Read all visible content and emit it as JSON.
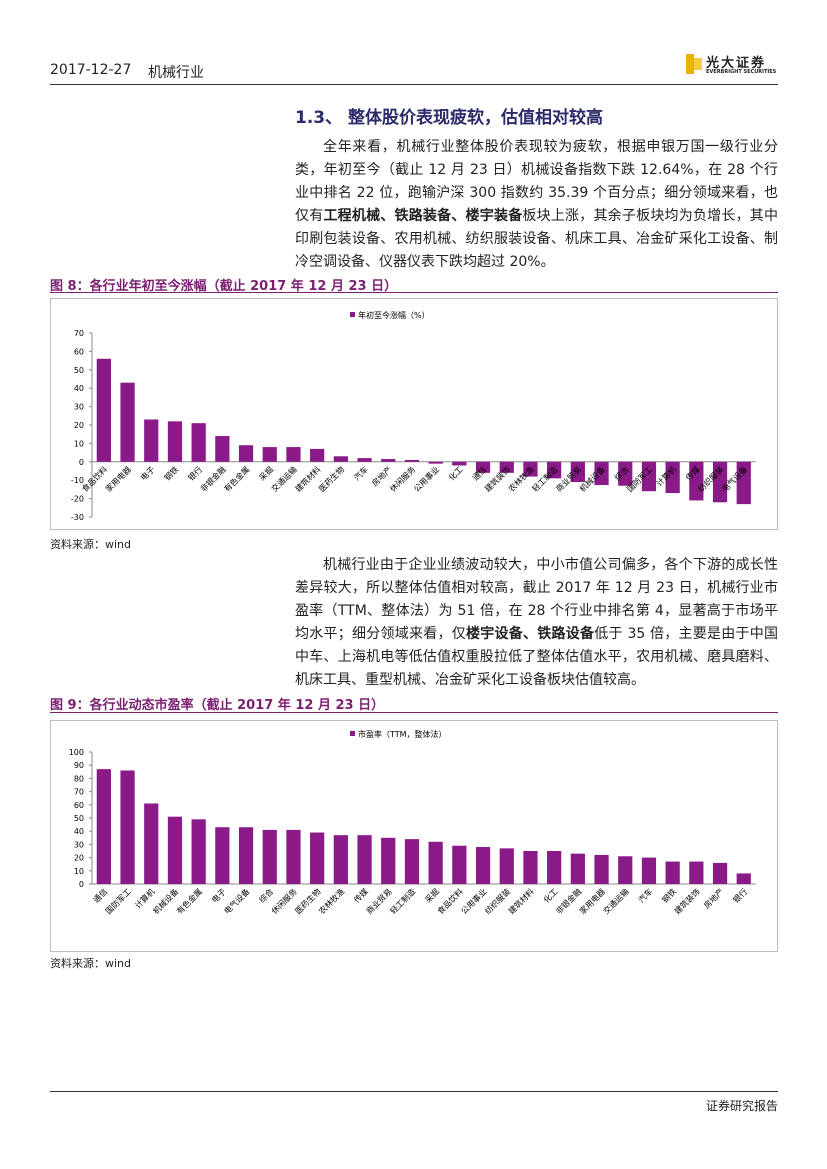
{
  "header": {
    "date": "2017-12-27",
    "industry": "机械行业",
    "logo": "光大证券",
    "logo_english": "EVERBRIGHT SECURITIES"
  },
  "section_title": "1.3、 整体股价表现疲软，估值相对较高",
  "paragraphs": [
    [
      {
        "text": "全年来看，机械行业整体股价表现较为疲软，根据申银万国一级行业分类，年初至今（截止 12 月 23 日）机械设备指数下跌 12.64%，在 28 个行业中排名 22 位，跑输沪深 300 指数约 35.39 个百分点；细分领域来看，也仅有",
        "bold": false
      },
      {
        "text": "工程机械、铁路装备、楼宇装备",
        "bold": true
      },
      {
        "text": "板块上涨，其余子板块均为负增长，其中印刷包装设备、农用机械、纺织服装设备、机床工具、冶金矿采化工设备、制冷空调设备、仪器仪表下跌均超过 20%。",
        "bold": false
      }
    ],
    [
      {
        "text": "机械行业由于企业业绩波动较大，中小市值公司偏多，各个下游的成长性差异较大，所以整体估值相对较高，截止 2017 年 12 月 23 日，机械行业市盈率（TTM、整体法）为 51 倍，在 28 个行业中排名第 4，显著高于市场平均水平；细分领域来看，仅",
        "bold": false
      },
      {
        "text": "楼宇设备、铁路设备",
        "bold": true
      },
      {
        "text": "低于 35 倍，主要是由于中国中车、上海机电等低估值权重股拉低了整体估值水平，农用机械、磨具磨料、机床工具、重型机械、冶金矿采化工设备板块估值较高。",
        "bold": false
      }
    ]
  ],
  "footer": "证券研究报告",
  "chart_data": [
    {
      "type": "bar",
      "title": "图 8：各行业年初至今涨幅（截止 2017 年 12 月 23 日）",
      "source": "资料来源：wind",
      "categories": [
        "食品饮料",
        "家用电器",
        "电子",
        "钢铁",
        "银行",
        "非银金融",
        "有色金属",
        "采掘",
        "交通运输",
        "建筑材料",
        "医药生物",
        "汽车",
        "房地产",
        "休闲服务",
        "公用事业",
        "化工",
        "通信",
        "建筑装饰",
        "农林牧渔",
        "轻工制造",
        "商业贸易",
        "机械设备",
        "综合",
        "国防军工",
        "计算机",
        "传媒",
        "纺织服装",
        "电气设备"
      ],
      "series": [
        {
          "name": "年初至今涨幅（%）",
          "color": "#8b1a89",
          "values": [
            56,
            43,
            23,
            22,
            21,
            14,
            9,
            8,
            8,
            7,
            3,
            2,
            1.5,
            1,
            -1,
            -2,
            -6,
            -6,
            -8,
            -9,
            -11,
            -12.64,
            -13,
            -16,
            -17,
            -21,
            -22,
            -23
          ]
        }
      ],
      "ylim": [
        -30,
        70
      ],
      "yticks": [
        -30,
        -20,
        -10,
        0,
        10,
        20,
        30,
        40,
        50,
        60,
        70
      ],
      "legend": "top"
    },
    {
      "type": "bar",
      "title": "图 9：各行业动态市盈率（截止 2017 年 12 月 23 日）",
      "source": "资料来源：wind",
      "categories": [
        "通信",
        "国防军工",
        "计算机",
        "机械设备",
        "有色金属",
        "电子",
        "电气设备",
        "综合",
        "休闲服务",
        "医药生物",
        "农林牧渔",
        "传媒",
        "商业贸易",
        "轻工制造",
        "采掘",
        "食品饮料",
        "公用事业",
        "纺织服装",
        "建筑材料",
        "化工",
        "非银金融",
        "家用电器",
        "交通运输",
        "汽车",
        "钢铁",
        "建筑装饰",
        "房地产",
        "银行"
      ],
      "series": [
        {
          "name": "市盈率（TTM，整体法）",
          "color": "#8b1a89",
          "values": [
            87,
            86,
            61,
            51,
            49,
            43,
            43,
            41,
            41,
            39,
            37,
            37,
            35,
            34,
            32,
            29,
            28,
            27,
            25,
            25,
            23,
            22,
            21,
            20,
            17,
            17,
            16,
            8
          ]
        }
      ],
      "ylim": [
        0,
        100
      ],
      "yticks": [
        0,
        10,
        20,
        30,
        40,
        50,
        60,
        70,
        80,
        90,
        100
      ],
      "legend": "top"
    }
  ]
}
